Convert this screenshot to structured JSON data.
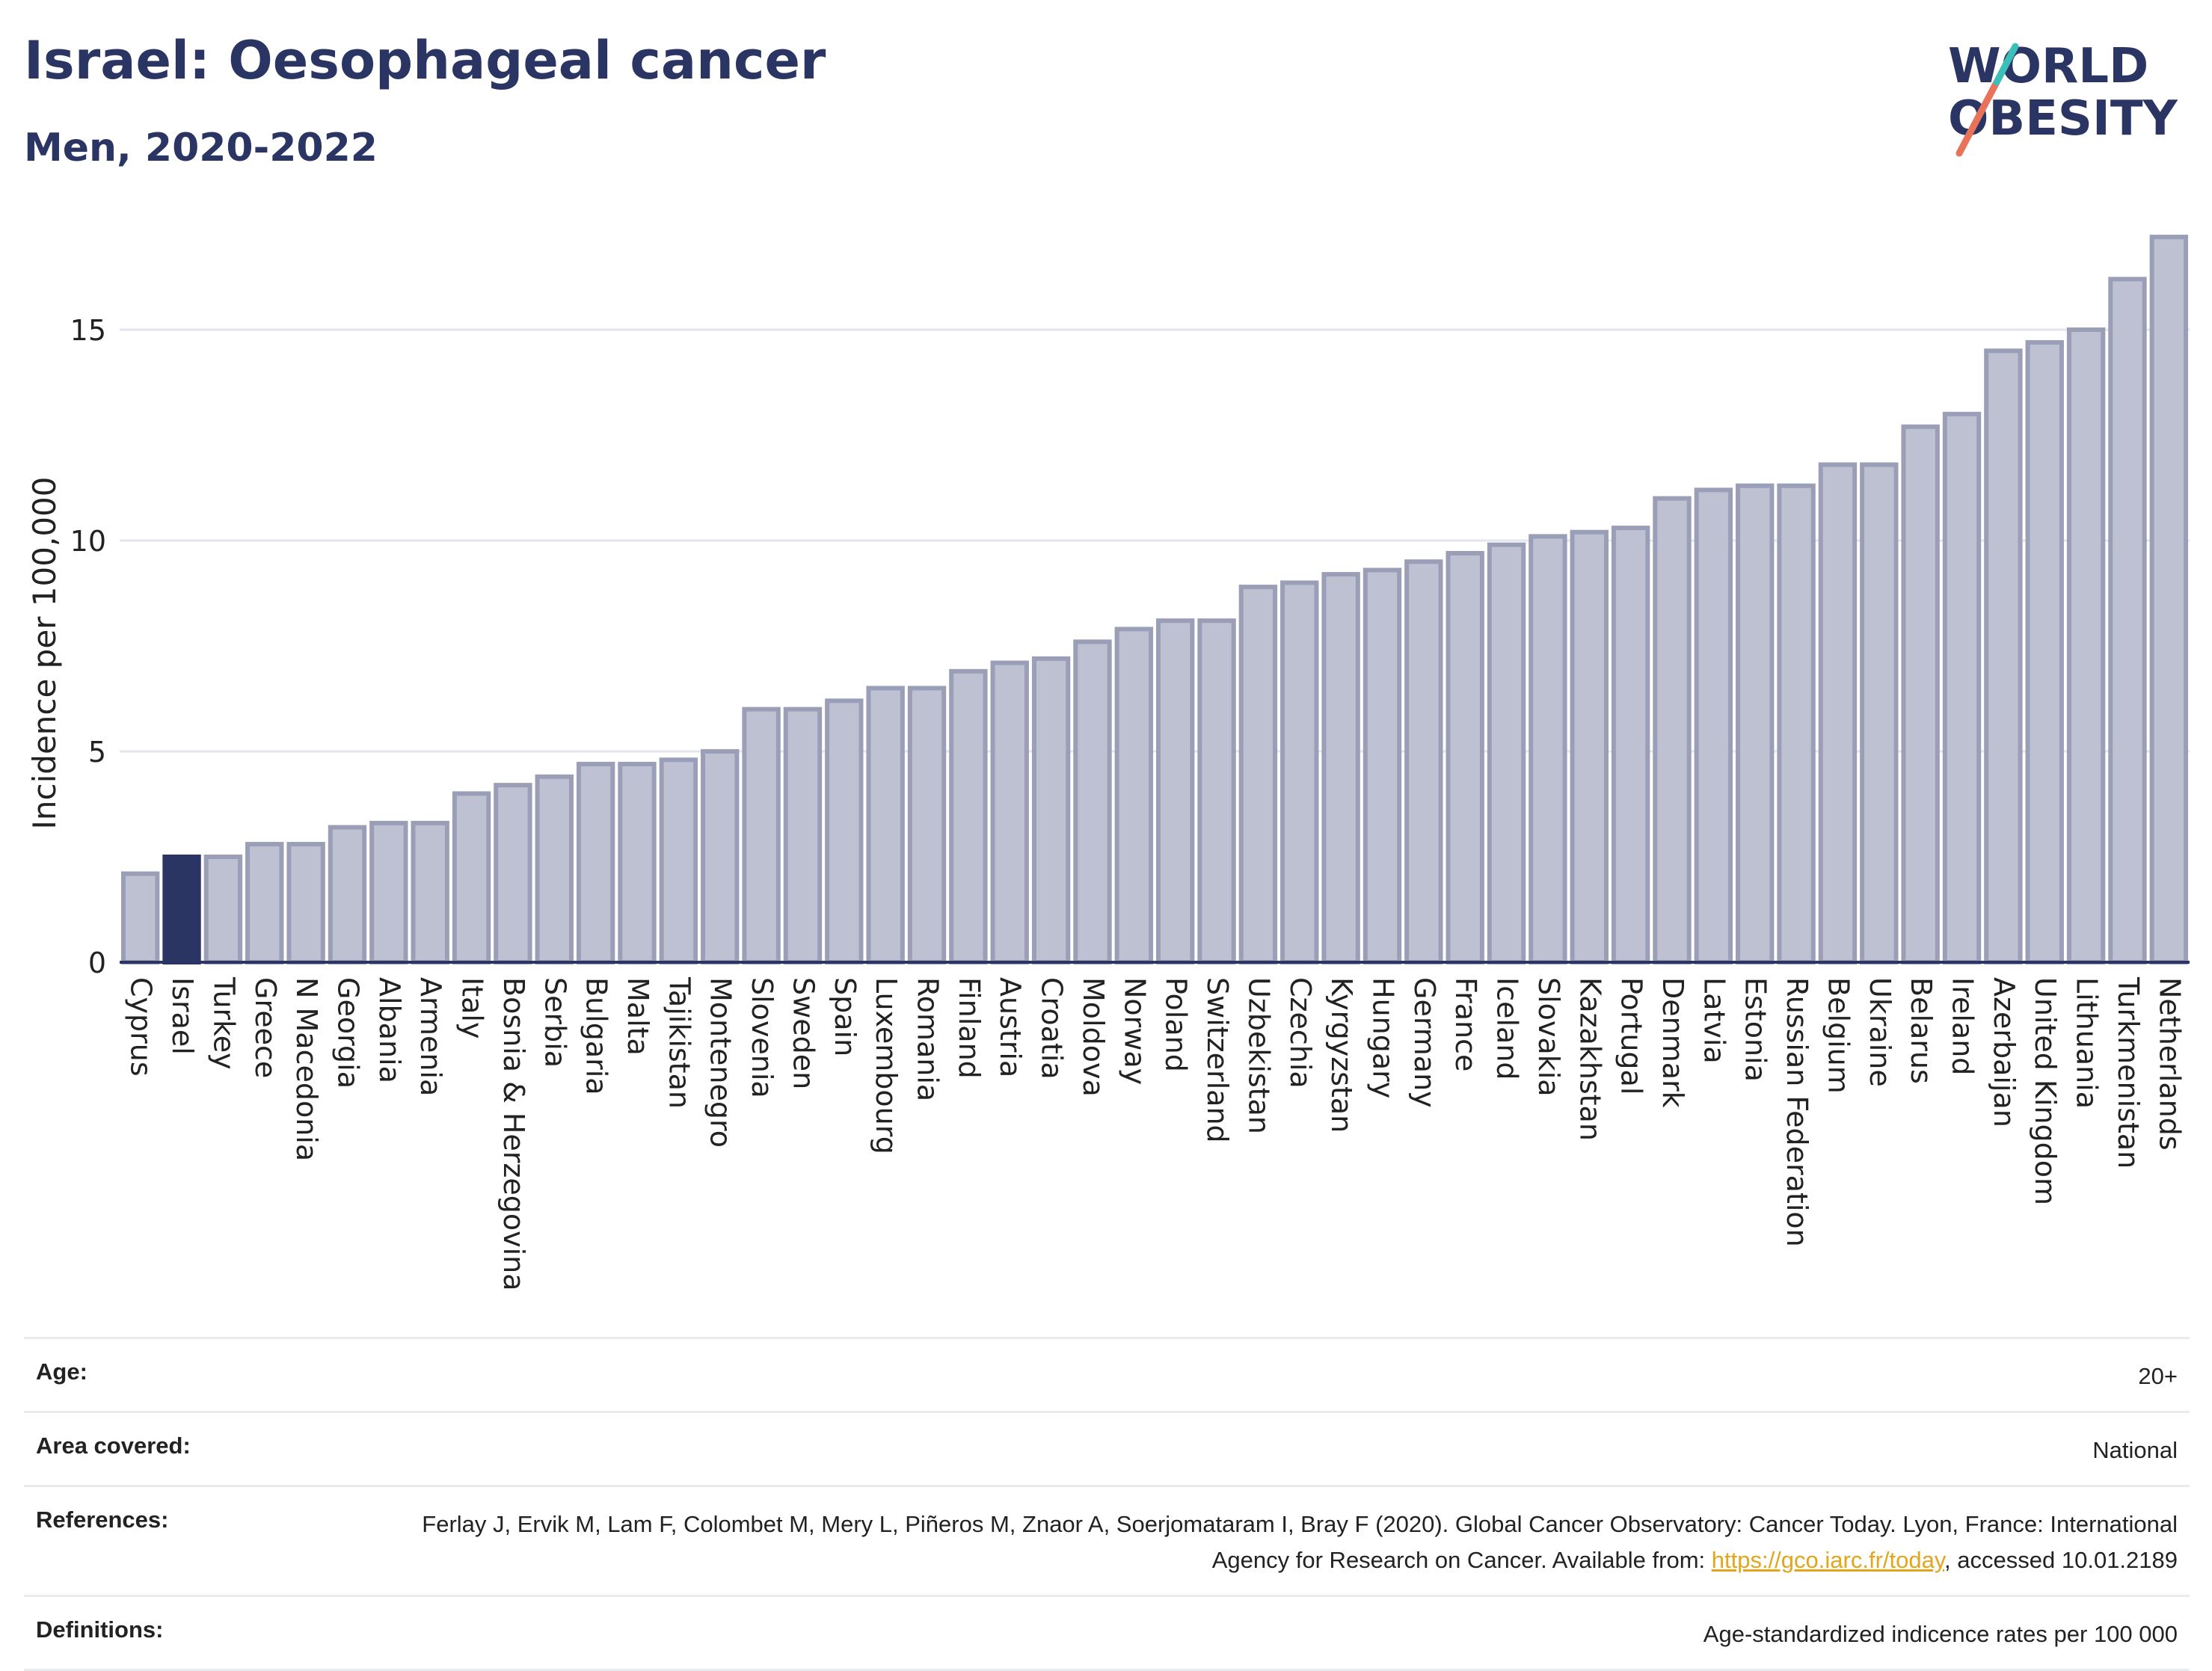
{
  "header": {
    "title": "Israel: Oesophageal cancer",
    "subtitle": "Men, 2020-2022"
  },
  "logo": {
    "line1": "WORLD",
    "line2": "OBESITY"
  },
  "colors": {
    "bar": "#bec1d1",
    "bar_stroke": "#9a9fb7",
    "highlight": "#2b3563",
    "grid": "#e3e6ec",
    "axis": "#2b3563"
  },
  "chart_data": {
    "type": "bar",
    "title": "Israel: Oesophageal cancer",
    "subtitle": "Men, 2020-2022",
    "ylabel": "Incidence per 100,000",
    "xlabel": "",
    "ylim": [
      0,
      17.5
    ],
    "yticks": [
      0,
      5,
      10,
      15
    ],
    "grid": true,
    "highlight": "Israel",
    "categories": [
      "Cyprus",
      "Israel",
      "Turkey",
      "Greece",
      "N Macedonia",
      "Georgia",
      "Albania",
      "Armenia",
      "Italy",
      "Bosnia & Herzegovina",
      "Serbia",
      "Bulgaria",
      "Malta",
      "Tajikistan",
      "Montenegro",
      "Slovenia",
      "Sweden",
      "Spain",
      "Luxembourg",
      "Romania",
      "Finland",
      "Austria",
      "Croatia",
      "Moldova",
      "Norway",
      "Poland",
      "Switzerland",
      "Uzbekistan",
      "Czechia",
      "Kyrgyzstan",
      "Hungary",
      "Germany",
      "France",
      "Iceland",
      "Slovakia",
      "Kazakhstan",
      "Portugal",
      "Denmark",
      "Latvia",
      "Estonia",
      "Russian Federation",
      "Belgium",
      "Ukraine",
      "Belarus",
      "Ireland",
      "Azerbaijan",
      "United Kingdom",
      "Lithuania",
      "Turkmenistan",
      "Netherlands"
    ],
    "values": [
      2.1,
      2.5,
      2.5,
      2.8,
      2.8,
      3.2,
      3.3,
      3.3,
      4.0,
      4.2,
      4.4,
      4.7,
      4.7,
      4.8,
      5.0,
      6.0,
      6.0,
      6.2,
      6.5,
      6.5,
      6.9,
      7.1,
      7.2,
      7.6,
      7.9,
      8.1,
      8.1,
      8.9,
      9.0,
      9.2,
      9.3,
      9.5,
      9.7,
      9.9,
      10.1,
      10.2,
      10.3,
      11.0,
      11.2,
      11.3,
      11.3,
      11.8,
      11.8,
      12.7,
      13.0,
      14.5,
      14.7,
      15.0,
      16.2,
      17.2
    ]
  },
  "meta": {
    "age_label": "Age:",
    "age_value": "20+",
    "area_label": "Area covered:",
    "area_value": "National",
    "references_label": "References:",
    "references_text": "Ferlay J, Ervik M, Lam F, Colombet M, Mery L, Piñeros M, Znaor A, Soerjomataram I, Bray F (2020). Global Cancer Observatory: Cancer Today. Lyon, France: International Agency for Research on Cancer. Available from: ",
    "references_link": "https://gco.iarc.fr/today",
    "references_suffix": ", accessed 10.01.2189",
    "definitions_label": "Definitions:",
    "definitions_value": "Age-standardized indicence rates per 100 000"
  }
}
